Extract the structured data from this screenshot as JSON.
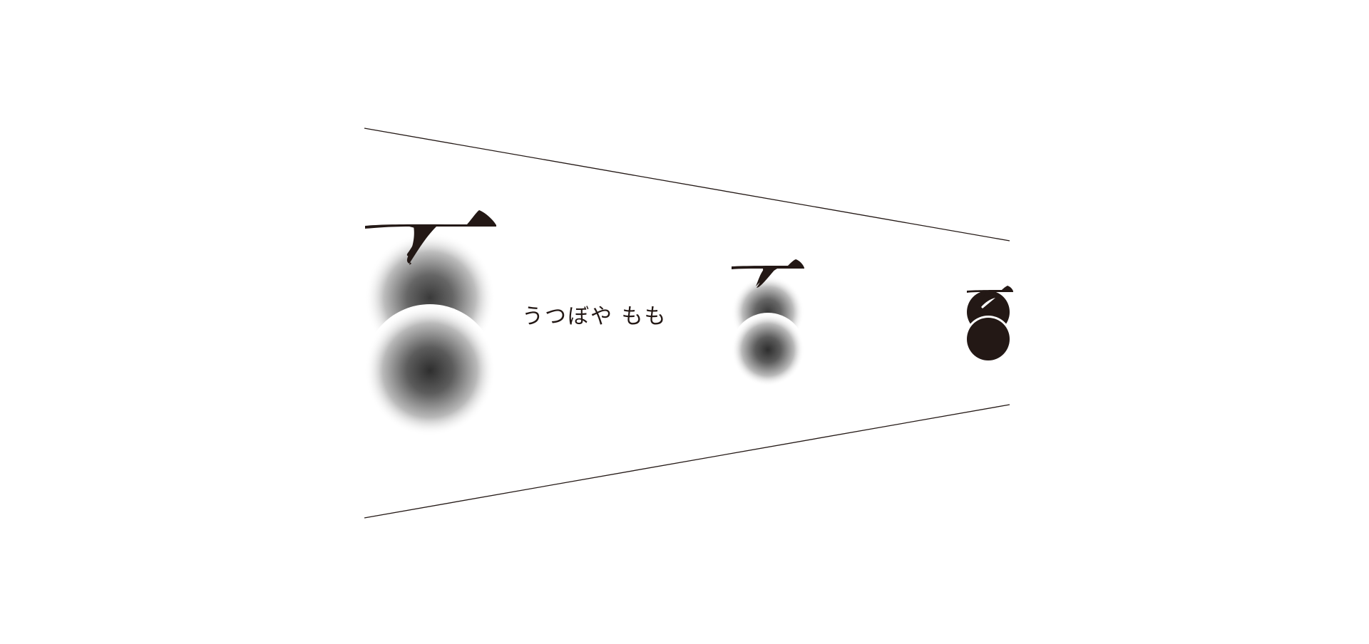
{
  "brand": {
    "name": "うつぼや もも"
  },
  "colors": {
    "ink": "#231815",
    "background": "#ffffff"
  },
  "logo_variants": [
    {
      "name": "large-peach-mark",
      "style": "gradient"
    },
    {
      "name": "medium-peach-mark",
      "style": "gradient"
    },
    {
      "name": "small-peach-mark",
      "style": "solid"
    }
  ]
}
